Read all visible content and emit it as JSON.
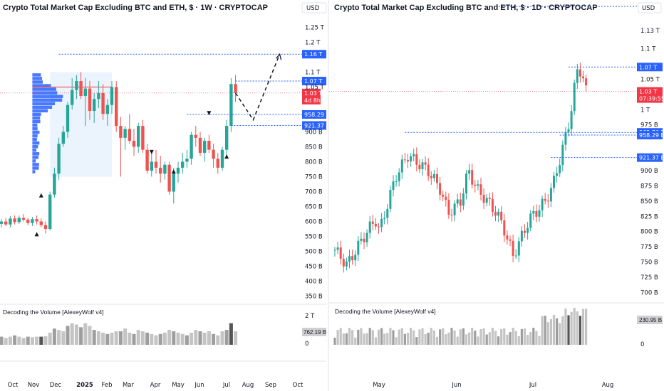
{
  "currency_left": "USD",
  "currency_right": "USD",
  "colors": {
    "up": "#26a69a",
    "down": "#ef5350",
    "level": "#2962ff",
    "price": "#f23645"
  },
  "left_chart": {
    "title": "Crypto Total Market Cap Excluding BTC and ETH, $ · 1W · CRYPTOCAP",
    "price_ticks": [
      "1.25 T",
      "1.2 T",
      "1.1 T",
      "1.05 T",
      "900 B",
      "850 B",
      "800 B",
      "750 B",
      "700 B",
      "650 B",
      "600 B",
      "550 B",
      "500 B",
      "450 B",
      "400 B",
      "350 B"
    ],
    "time_ticks": [
      "Oct",
      "Nov",
      "Dec",
      "2025",
      "Feb",
      "Mar",
      "Apr",
      "May",
      "Jun",
      "Jul",
      "Aug",
      "Sep",
      "Oct"
    ],
    "level_tags": [
      "1.16 T",
      "1.07 T",
      "958.29 B",
      "921.37 B"
    ],
    "price_tag": "1.03 T",
    "countdown": "4d 8h",
    "indicator_label": "Decoding the Volume [AlexeyWolf v4]",
    "indicator_ticks": [
      "2 T",
      "0"
    ],
    "volume_tag": "762.19 B"
  },
  "right_chart": {
    "title": "Crypto Total Market Cap Excluding BTC and ETH, $ · 1D · CRYPTOCAP",
    "price_ticks": [
      "1.13 T",
      "1.1 T",
      "1.05 T",
      "1 T",
      "975 B",
      "900 B",
      "875 B",
      "850 B",
      "825 B",
      "800 B",
      "775 B",
      "750 B",
      "725 B",
      "700 B"
    ],
    "time_ticks": [
      "May",
      "Jun",
      "Jul",
      "Aug"
    ],
    "level_tags": [
      "1.07 T",
      "962.76 B",
      "958.29 B",
      "921.37 B"
    ],
    "price_tag": "1.03 T",
    "countdown": "07:39:55",
    "indicator_label": "Decoding the Volume [AlexeyWolf v4]",
    "indicator_ticks": [
      "0"
    ],
    "volume_tag": "230.95 B"
  },
  "chart_data": [
    {
      "type": "candlestick",
      "title": "Crypto Total Market Cap Excluding BTC and ETH, $ · 1W · CRYPTOCAP",
      "ylim": [
        330,
        1270
      ],
      "ohlc": [
        [
          592,
          608,
          580,
          600
        ],
        [
          600,
          612,
          585,
          590
        ],
        [
          590,
          618,
          580,
          610
        ],
        [
          610,
          620,
          590,
          598
        ],
        [
          598,
          620,
          592,
          612
        ],
        [
          612,
          625,
          600,
          606
        ],
        [
          606,
          612,
          588,
          595
        ],
        [
          595,
          615,
          585,
          608
        ],
        [
          608,
          620,
          590,
          600
        ],
        [
          600,
          610,
          580,
          588
        ],
        [
          588,
          600,
          560,
          575
        ],
        [
          575,
          700,
          570,
          690
        ],
        [
          690,
          780,
          680,
          760
        ],
        [
          760,
          880,
          740,
          860
        ],
        [
          860,
          920,
          850,
          900
        ],
        [
          900,
          1000,
          880,
          990
        ],
        [
          990,
          1080,
          975,
          1040
        ],
        [
          1040,
          1090,
          1010,
          1070
        ],
        [
          1070,
          1100,
          1010,
          1020
        ],
        [
          1020,
          1080,
          920,
          1045
        ],
        [
          1045,
          1070,
          940,
          970
        ],
        [
          970,
          1030,
          930,
          1010
        ],
        [
          1010,
          1070,
          980,
          1030
        ],
        [
          1030,
          1060,
          940,
          960
        ],
        [
          960,
          1010,
          920,
          990
        ],
        [
          990,
          1070,
          960,
          1050
        ],
        [
          1050,
          1070,
          900,
          920
        ],
        [
          920,
          950,
          750,
          880
        ],
        [
          880,
          920,
          840,
          910
        ],
        [
          910,
          960,
          860,
          870
        ],
        [
          870,
          910,
          820,
          850
        ],
        [
          850,
          930,
          830,
          920
        ],
        [
          920,
          940,
          830,
          840
        ],
        [
          840,
          860,
          760,
          770
        ],
        [
          770,
          830,
          750,
          800
        ],
        [
          800,
          840,
          760,
          780
        ],
        [
          780,
          820,
          730,
          760
        ],
        [
          760,
          800,
          740,
          790
        ],
        [
          790,
          800,
          690,
          700
        ],
        [
          700,
          780,
          660,
          760
        ],
        [
          760,
          800,
          730,
          780
        ],
        [
          780,
          830,
          760,
          800
        ],
        [
          800,
          840,
          780,
          810
        ],
        [
          810,
          900,
          790,
          890
        ],
        [
          890,
          920,
          850,
          880
        ],
        [
          880,
          900,
          820,
          830
        ],
        [
          830,
          880,
          800,
          870
        ],
        [
          870,
          890,
          830,
          840
        ],
        [
          840,
          860,
          780,
          810
        ],
        [
          810,
          830,
          760,
          780
        ],
        [
          780,
          850,
          770,
          840
        ],
        [
          840,
          940,
          820,
          920
        ],
        [
          920,
          1080,
          900,
          1060
        ],
        [
          1060,
          1090,
          1000,
          1030
        ]
      ],
      "levels": [
        1160,
        1070,
        958.29,
        921.37
      ],
      "last_price": 1030,
      "projection": [
        [
          1030,
          940
        ],
        [
          1160
        ]
      ],
      "volume": [
        0.3,
        0.25,
        0.3,
        0.35,
        0.3,
        0.25,
        0.3,
        0.28,
        0.3,
        0.3,
        0.32,
        0.45,
        0.6,
        0.55,
        0.5,
        0.7,
        0.8,
        0.75,
        0.65,
        0.8,
        0.7,
        0.55,
        0.5,
        0.45,
        0.4,
        0.45,
        0.5,
        0.5,
        0.6,
        0.45,
        0.4,
        0.55,
        0.5,
        0.45,
        0.4,
        0.35,
        0.4,
        0.45,
        0.55,
        0.5,
        0.45,
        0.4,
        0.35,
        0.45,
        0.55,
        0.5,
        0.45,
        0.5,
        0.4,
        0.35,
        0.5,
        0.55,
        0.8,
        0.5
      ]
    },
    {
      "type": "candlestick",
      "title": "Crypto Total Market Cap Excluding BTC and ETH, $ · 1D · CRYPTOCAP",
      "ylim": [
        690,
        1145
      ],
      "levels": [
        1070,
        962.76,
        958.29,
        921.37
      ],
      "last_price": 1030
    }
  ]
}
